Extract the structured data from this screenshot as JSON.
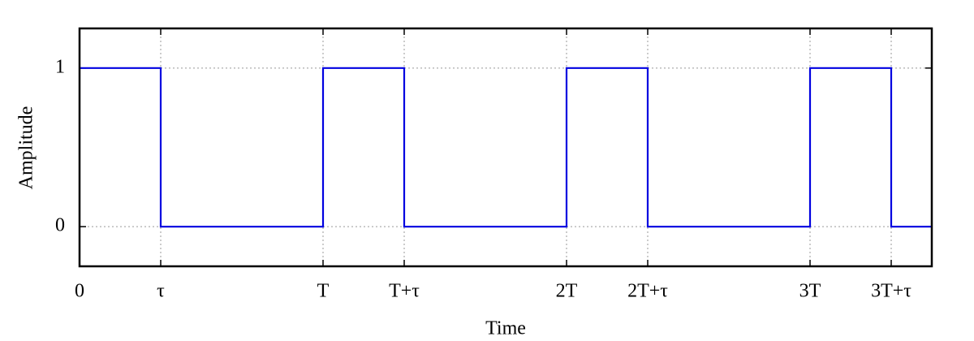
{
  "chart_data": {
    "type": "line",
    "xlabel": "Time",
    "ylabel": "Amplitude",
    "x": [
      0,
      1,
      1,
      3,
      3,
      4,
      4,
      6,
      6,
      7,
      7,
      9,
      9,
      10,
      10,
      10.5
    ],
    "values": [
      1,
      1,
      0,
      0,
      1,
      1,
      0,
      0,
      1,
      1,
      0,
      0,
      1,
      1,
      0,
      0
    ],
    "color": "#0000e0",
    "xlim": [
      0,
      10.5
    ],
    "xticks": [
      0,
      {
        "value": 1,
        "label": "τ"
      },
      {
        "value": 3,
        "label": "T"
      },
      {
        "value": 4,
        "label": "T+τ"
      },
      {
        "value": 6,
        "label": "2T"
      },
      {
        "value": 7,
        "label": "2T+τ"
      },
      {
        "value": 9,
        "label": "3T"
      },
      {
        "value": 10,
        "label": "3T+τ"
      }
    ],
    "ylim": [
      -0.25,
      1.25
    ],
    "yticks": [
      0,
      1
    ],
    "grid": true
  }
}
